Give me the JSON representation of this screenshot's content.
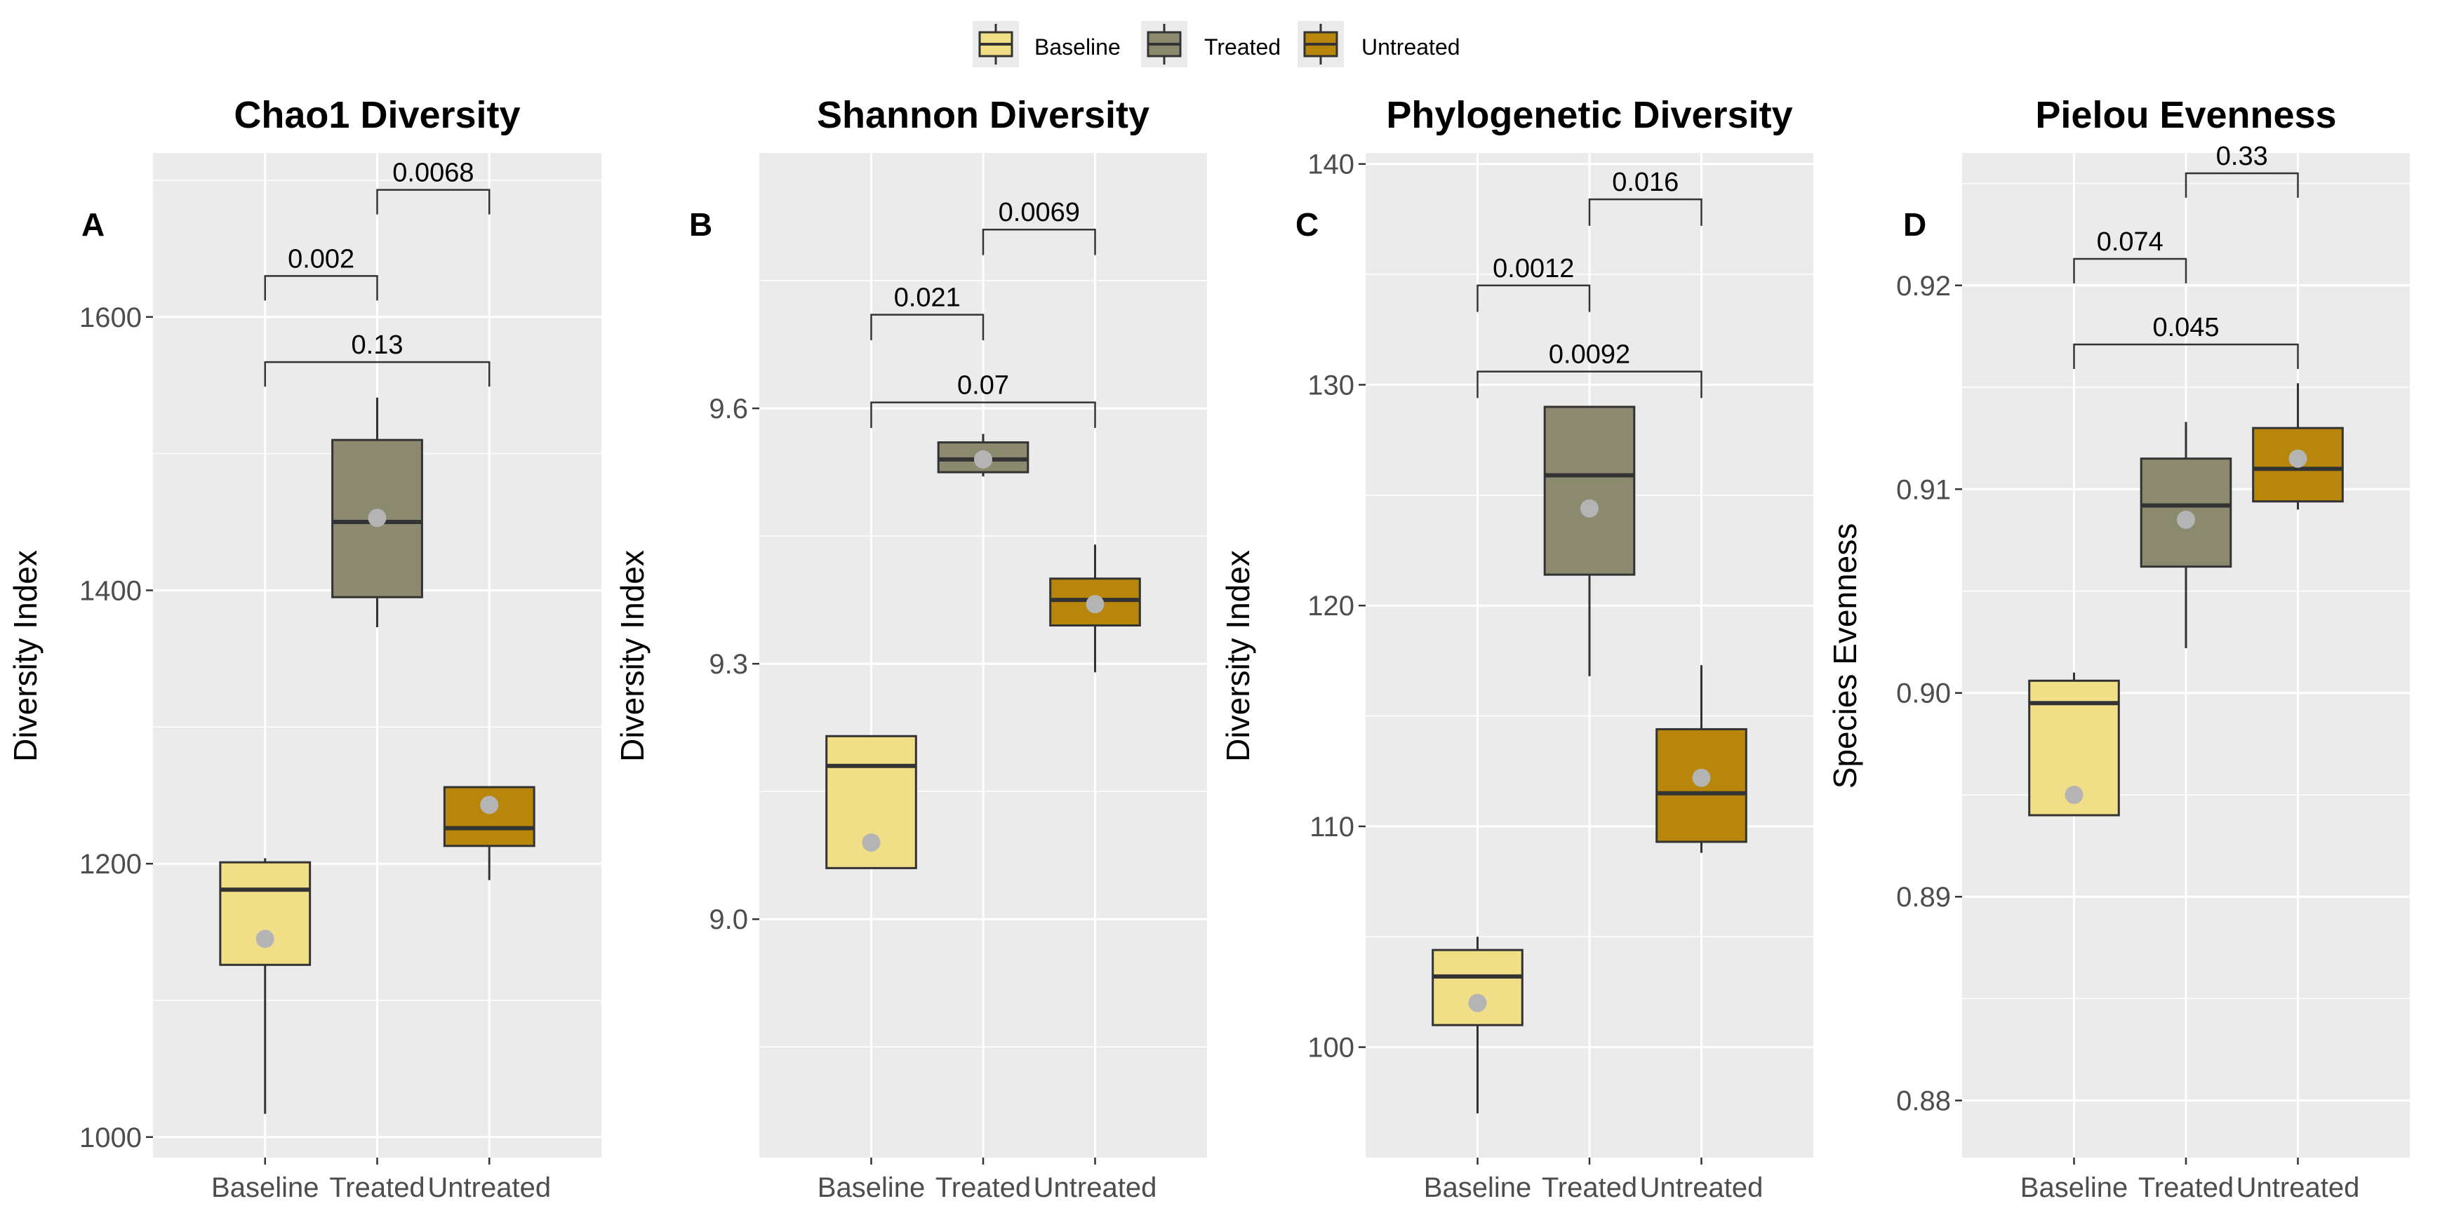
{
  "legend": {
    "items": [
      {
        "label": "Baseline",
        "color": "#F0DF87"
      },
      {
        "label": "Treated",
        "color": "#8C8A6E"
      },
      {
        "label": "Untreated",
        "color": "#B8860B"
      }
    ]
  },
  "chart_data": [
    {
      "type": "box",
      "panel": "A",
      "title": "Chao1 Diversity",
      "ylabel": "Diversity Index",
      "categories": [
        "Baseline",
        "Treated",
        "Untreated"
      ],
      "ylim": [
        985,
        1720
      ],
      "yticks": [
        1000,
        1200,
        1400,
        1600
      ],
      "ytick_labels": [
        "1000",
        "1200",
        "1400",
        "1600"
      ],
      "boxes": [
        {
          "category": "Baseline",
          "min": 1017,
          "q1": 1126,
          "median": 1181,
          "q3": 1201,
          "max": 1204,
          "mean": 1145
        },
        {
          "category": "Treated",
          "min": 1373,
          "q1": 1395,
          "median": 1450,
          "q3": 1510,
          "max": 1541,
          "mean": 1453
        },
        {
          "category": "Untreated",
          "min": 1188,
          "q1": 1213,
          "median": 1226,
          "q3": 1256,
          "max": 1256,
          "mean": 1243
        }
      ],
      "comparisons": [
        {
          "from": "Baseline",
          "to": "Treated",
          "label": "0.002",
          "y": 1630,
          "tip": 1612
        },
        {
          "from": "Treated",
          "to": "Untreated",
          "label": "0.0068",
          "y": 1693,
          "tip": 1675
        },
        {
          "from": "Baseline",
          "to": "Untreated",
          "label": "0.13",
          "y": 1567,
          "tip": 1549
        }
      ]
    },
    {
      "type": "box",
      "panel": "B",
      "title": "Shannon Diversity",
      "ylabel": "Diversity Index",
      "categories": [
        "Baseline",
        "Treated",
        "Untreated"
      ],
      "ylim": [
        8.72,
        9.9
      ],
      "yticks": [
        9.0,
        9.3,
        9.6
      ],
      "ytick_labels": [
        "9.0",
        "9.3",
        "9.6"
      ],
      "boxes": [
        {
          "category": "Baseline",
          "min": 9.06,
          "q1": 9.06,
          "median": 9.18,
          "q3": 9.215,
          "max": 9.215,
          "mean": 9.09
        },
        {
          "category": "Treated",
          "min": 9.52,
          "q1": 9.525,
          "median": 9.54,
          "q3": 9.56,
          "max": 9.57,
          "mean": 9.54
        },
        {
          "category": "Untreated",
          "min": 9.29,
          "q1": 9.345,
          "median": 9.375,
          "q3": 9.4,
          "max": 9.44,
          "mean": 9.37
        }
      ],
      "comparisons": [
        {
          "from": "Baseline",
          "to": "Treated",
          "label": "0.021",
          "y": 9.71,
          "tip": 9.68
        },
        {
          "from": "Treated",
          "to": "Untreated",
          "label": "0.0069",
          "y": 9.81,
          "tip": 9.78
        },
        {
          "from": "Baseline",
          "to": "Untreated",
          "label": "0.07",
          "y": 9.607,
          "tip": 9.577
        }
      ]
    },
    {
      "type": "box",
      "panel": "C",
      "title": "Phylogenetic Diversity",
      "ylabel": "Diversity Index",
      "categories": [
        "Baseline",
        "Treated",
        "Untreated"
      ],
      "ylim": [
        95,
        140.5
      ],
      "yticks": [
        100,
        110,
        120,
        130,
        140
      ],
      "ytick_labels": [
        "100",
        "110",
        "120",
        "130",
        "140"
      ],
      "boxes": [
        {
          "category": "Baseline",
          "min": 97,
          "q1": 101,
          "median": 103.2,
          "q3": 104.4,
          "max": 105,
          "mean": 102
        },
        {
          "category": "Treated",
          "min": 116.8,
          "q1": 121.4,
          "median": 125.9,
          "q3": 129,
          "max": 129,
          "mean": 124.4
        },
        {
          "category": "Untreated",
          "min": 108.8,
          "q1": 109.3,
          "median": 111.5,
          "q3": 114.4,
          "max": 117.3,
          "mean": 112.2
        }
      ],
      "comparisons": [
        {
          "from": "Baseline",
          "to": "Treated",
          "label": "0.0012",
          "y": 134.5,
          "tip": 133.3
        },
        {
          "from": "Treated",
          "to": "Untreated",
          "label": "0.016",
          "y": 138.4,
          "tip": 137.2
        },
        {
          "from": "Baseline",
          "to": "Untreated",
          "label": "0.0092",
          "y": 130.6,
          "tip": 129.4
        }
      ]
    },
    {
      "type": "box",
      "panel": "D",
      "title": "Pielou Evenness",
      "ylabel": "Species Evenness",
      "categories": [
        "Baseline",
        "Treated",
        "Untreated"
      ],
      "ylim": [
        0.8772,
        0.9265
      ],
      "yticks": [
        0.88,
        0.89,
        0.9,
        0.91,
        0.92
      ],
      "ytick_labels": [
        "0.88",
        "0.89",
        "0.90",
        "0.91",
        "0.92"
      ],
      "boxes": [
        {
          "category": "Baseline",
          "min": 0.894,
          "q1": 0.894,
          "median": 0.8995,
          "q3": 0.9006,
          "max": 0.901,
          "mean": 0.895
        },
        {
          "category": "Treated",
          "min": 0.9022,
          "q1": 0.9062,
          "median": 0.9092,
          "q3": 0.9115,
          "max": 0.9133,
          "mean": 0.9085
        },
        {
          "category": "Untreated",
          "min": 0.909,
          "q1": 0.9094,
          "median": 0.911,
          "q3": 0.913,
          "max": 0.9152,
          "mean": 0.9115
        }
      ],
      "comparisons": [
        {
          "from": "Baseline",
          "to": "Treated",
          "label": "0.074",
          "y": 0.9213,
          "tip": 0.9201
        },
        {
          "from": "Treated",
          "to": "Untreated",
          "label": "0.33",
          "y": 0.9255,
          "tip": 0.9243
        },
        {
          "from": "Baseline",
          "to": "Untreated",
          "label": "0.045",
          "y": 0.9171,
          "tip": 0.9159
        }
      ]
    }
  ]
}
